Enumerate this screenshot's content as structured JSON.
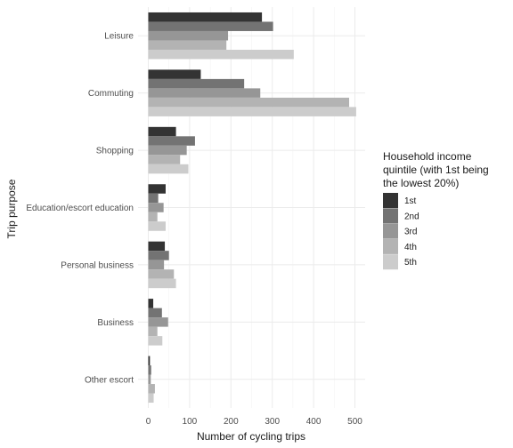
{
  "chart_data": {
    "type": "bar",
    "orientation": "horizontal",
    "categories": [
      "Leisure",
      "Commuting",
      "Shopping",
      "Education/escort education",
      "Personal business",
      "Business",
      "Other escort"
    ],
    "series": [
      {
        "name": "1st",
        "color": "#333333",
        "values": [
          275,
          127,
          67,
          42,
          40,
          12,
          4
        ]
      },
      {
        "name": "2nd",
        "color": "#737373",
        "values": [
          302,
          232,
          113,
          24,
          50,
          33,
          7
        ]
      },
      {
        "name": "3rd",
        "color": "#969696",
        "values": [
          193,
          271,
          93,
          37,
          38,
          48,
          6
        ]
      },
      {
        "name": "4th",
        "color": "#b3b3b3",
        "values": [
          189,
          486,
          77,
          22,
          62,
          22,
          16
        ]
      },
      {
        "name": "5th",
        "color": "#cccccc",
        "values": [
          352,
          503,
          97,
          42,
          67,
          34,
          13
        ]
      }
    ],
    "xlabel": "Number of cycling trips",
    "ylabel": "Trip purpose",
    "x_ticks": [
      "0",
      "100",
      "200",
      "300",
      "400",
      "500"
    ],
    "xlim": [
      0,
      530
    ],
    "legend": {
      "title_lines": [
        "Household income",
        "quintile (with 1st being",
        "the lowest 20%)"
      ],
      "position": "right"
    },
    "grid": true
  }
}
